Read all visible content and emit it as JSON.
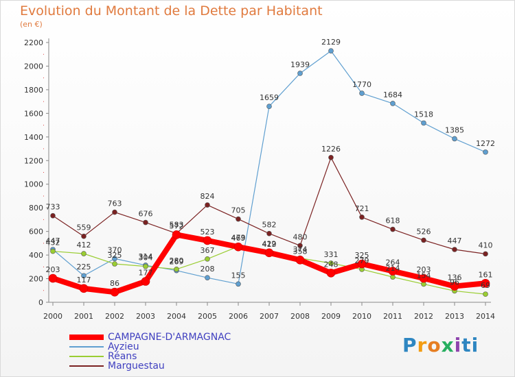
{
  "header": {
    "title": "Evolution du Montant de la Dette par Habitant",
    "subtitle": "(en €)"
  },
  "logo": {
    "text": "Proxiti"
  },
  "chart_data": {
    "type": "line",
    "title": "Evolution du Montant de la Dette par Habitant",
    "subtitle": "(en €)",
    "xlabel": "",
    "ylabel": "",
    "categories": [
      "2000",
      "2001",
      "2002",
      "2003",
      "2004",
      "2005",
      "2006",
      "2007",
      "2008",
      "2009",
      "2010",
      "2011",
      "2012",
      "2013",
      "2014"
    ],
    "ylim": [
      0,
      2200
    ],
    "yticks": [
      0,
      200,
      400,
      600,
      800,
      1000,
      1200,
      1400,
      1600,
      1800,
      2000,
      2200
    ],
    "grid": false,
    "legend_position": "bottom-left",
    "series": [
      {
        "name": "CAMPAGNE-D'ARMAGNAC",
        "color": "#ff0000",
        "width": 8,
        "values": [
          203,
          117,
          86,
          177,
          572,
          523,
          469,
          419,
          358,
          248,
          325,
          264,
          203,
          136,
          161
        ],
        "labels": [
          "203",
          "117",
          "86",
          "177",
          "572",
          "523",
          "469",
          "419",
          "358",
          "248",
          "325",
          "264",
          "203",
          "136",
          "161"
        ]
      },
      {
        "name": "Ayzieu",
        "color": "#5f9fd0",
        "width": 1.2,
        "values": [
          447,
          225,
          370,
          314,
          269,
          208,
          155,
          1659,
          1939,
          2129,
          1770,
          1684,
          1518,
          1385,
          1272
        ],
        "labels": [
          "447",
          "225",
          "370",
          "314",
          "269",
          "208",
          "155",
          "1659",
          "1939",
          "2129",
          "1770",
          "1684",
          "1518",
          "1385",
          "1272"
        ]
      },
      {
        "name": "Réans",
        "color": "#9acd32",
        "width": 1.2,
        "values": [
          432,
          412,
          325,
          304,
          280,
          367,
          473,
          422,
          374,
          331,
          279,
          214,
          154,
          96,
          69
        ],
        "labels": [
          "432",
          "412",
          "325",
          "304",
          "280",
          "367",
          "473",
          "422",
          "374",
          "331",
          "279",
          "214",
          "154",
          "96",
          "69"
        ]
      },
      {
        "name": "Marguestau",
        "color": "#7b2222",
        "width": 1.2,
        "values": [
          733,
          559,
          763,
          676,
          583,
          824,
          705,
          582,
          480,
          1226,
          721,
          618,
          526,
          447,
          410
        ],
        "labels": [
          "733",
          "559",
          "763",
          "676",
          "583",
          "824",
          "705",
          "582",
          "480",
          "1226",
          "721",
          "618",
          "526",
          "447",
          "410"
        ]
      }
    ]
  }
}
